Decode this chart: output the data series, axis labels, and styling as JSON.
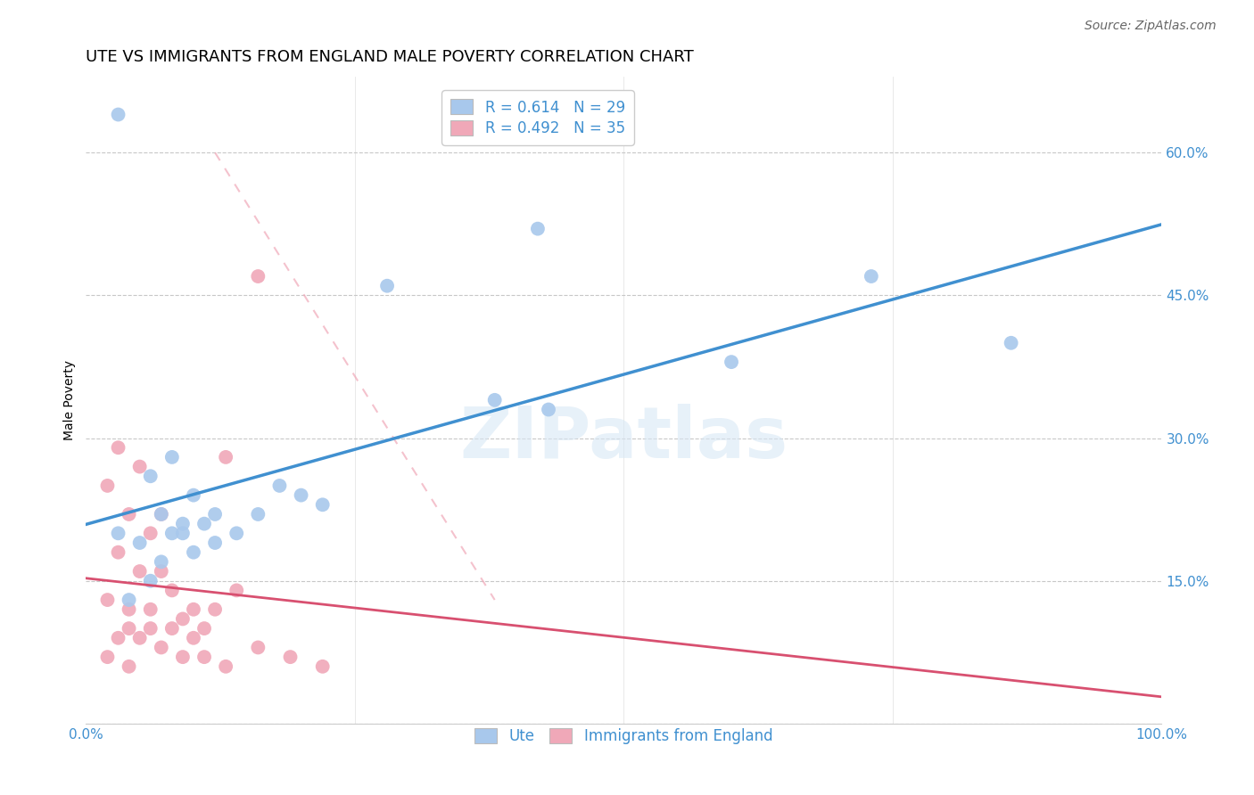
{
  "title": "UTE VS IMMIGRANTS FROM ENGLAND MALE POVERTY CORRELATION CHART",
  "source": "Source: ZipAtlas.com",
  "ylabel": "Male Poverty",
  "xlim": [
    0.0,
    1.0
  ],
  "ylim": [
    0.0,
    0.68
  ],
  "yticks": [
    0.0,
    0.15,
    0.3,
    0.45,
    0.6
  ],
  "ytick_labels": [
    "",
    "15.0%",
    "30.0%",
    "45.0%",
    "60.0%"
  ],
  "xtick_labels": [
    "0.0%",
    "",
    "",
    "",
    "100.0%"
  ],
  "xticks": [
    0.0,
    0.25,
    0.5,
    0.75,
    1.0
  ],
  "legend_text_blue": "R = 0.614   N = 29",
  "legend_text_pink": "R = 0.492   N = 35",
  "blue_color": "#A8C8EC",
  "pink_color": "#F0A8B8",
  "regression_blue_color": "#4090D0",
  "regression_pink_color": "#D85070",
  "text_color": "#4090D0",
  "blue_scatter_x": [
    0.03,
    0.42,
    0.28,
    0.08,
    0.06,
    0.1,
    0.07,
    0.09,
    0.11,
    0.08,
    0.05,
    0.12,
    0.18,
    0.07,
    0.1,
    0.14,
    0.2,
    0.73,
    0.86,
    0.6,
    0.38,
    0.06,
    0.04,
    0.16,
    0.22,
    0.43,
    0.03,
    0.12,
    0.09
  ],
  "blue_scatter_y": [
    0.64,
    0.52,
    0.46,
    0.28,
    0.26,
    0.24,
    0.22,
    0.21,
    0.21,
    0.2,
    0.19,
    0.22,
    0.25,
    0.17,
    0.18,
    0.2,
    0.24,
    0.47,
    0.4,
    0.38,
    0.34,
    0.15,
    0.13,
    0.22,
    0.23,
    0.33,
    0.2,
    0.19,
    0.2
  ],
  "pink_scatter_x": [
    0.16,
    0.03,
    0.05,
    0.02,
    0.04,
    0.06,
    0.03,
    0.07,
    0.05,
    0.08,
    0.02,
    0.04,
    0.06,
    0.09,
    0.11,
    0.03,
    0.05,
    0.07,
    0.09,
    0.11,
    0.13,
    0.04,
    0.06,
    0.1,
    0.12,
    0.14,
    0.02,
    0.04,
    0.08,
    0.1,
    0.16,
    0.19,
    0.22,
    0.13,
    0.07
  ],
  "pink_scatter_y": [
    0.47,
    0.29,
    0.27,
    0.25,
    0.22,
    0.2,
    0.18,
    0.16,
    0.16,
    0.14,
    0.13,
    0.12,
    0.12,
    0.11,
    0.1,
    0.09,
    0.09,
    0.08,
    0.07,
    0.07,
    0.06,
    0.1,
    0.1,
    0.12,
    0.12,
    0.14,
    0.07,
    0.06,
    0.1,
    0.09,
    0.08,
    0.07,
    0.06,
    0.28,
    0.22
  ],
  "title_fontsize": 13,
  "axis_label_fontsize": 10,
  "tick_fontsize": 11,
  "legend_fontsize": 12,
  "source_fontsize": 10
}
